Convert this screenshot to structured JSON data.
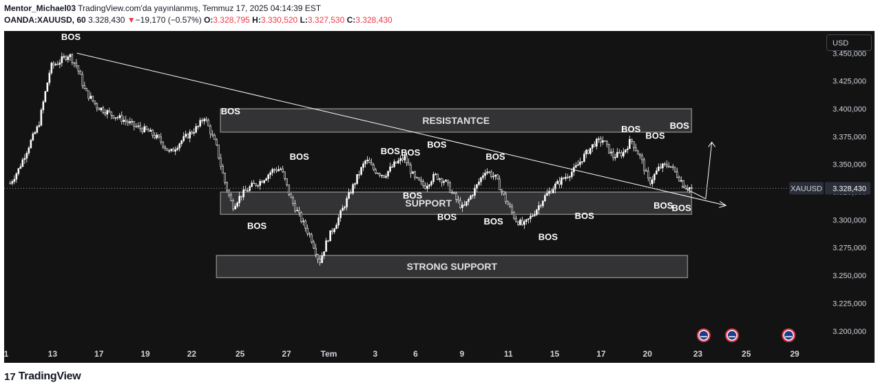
{
  "header": {
    "author": "Mentor_Michael03",
    "published_text": " TradingView.com'da yayınlanmış, Temmuz 17, 2025 04:14:39 EST",
    "symbol": "OANDA:XAUUSD, 60",
    "last_price": "3.328,430",
    "change_arrow": "▼",
    "change": "−19,170 (−0.57%)",
    "open_label": "O:",
    "open": "3.328,795",
    "high_label": "H:",
    "high": "3.330,520",
    "low_label": "L:",
    "low": "3.327,530",
    "close_label": "C:",
    "close": "3.328,430"
  },
  "currency_button": "USD",
  "footer": {
    "logo_text": "TradingView",
    "logo_mark": "17"
  },
  "colors": {
    "background": "#131313",
    "candle": "#ffffff",
    "zone_fill": "#3a3a3d",
    "zone_border": "#808080",
    "axis_text": "#d1d4dc",
    "negative": "#f23645",
    "event_badge": "#e0384c"
  },
  "chart_data": {
    "type": "candlestick",
    "price_axis": {
      "ylim": [
        3185,
        3470
      ],
      "ticks": [
        3450,
        3425,
        3400,
        3375,
        3350,
        3325,
        3300,
        3275,
        3250,
        3225,
        3200
      ],
      "tick_labels": [
        "3.450,000",
        "3.425,000",
        "3.400,000",
        "3.375,000",
        "3.350,000",
        "3.325,000",
        "3.300,000",
        "3.275,000",
        "3.250,000",
        "3.225,000",
        "3.200,000"
      ],
      "current_symbol": "XAUUSD",
      "current_price": 3328.43,
      "current_price_label": "3.328,430"
    },
    "time_axis": {
      "tick_labels": [
        "1",
        "13",
        "17",
        "19",
        "22",
        "25",
        "27",
        "Tem",
        "3",
        "6",
        "9",
        "11",
        "15",
        "17",
        "20",
        "23",
        "25",
        "29"
      ]
    },
    "price_path": [
      [
        0.2,
        3333
      ],
      [
        0.6,
        3345
      ],
      [
        1.2,
        3370
      ],
      [
        1.6,
        3385
      ],
      [
        2.2,
        3438
      ],
      [
        2.6,
        3442
      ],
      [
        3.1,
        3449
      ],
      [
        3.5,
        3438
      ],
      [
        3.9,
        3416
      ],
      [
        4.5,
        3402
      ],
      [
        5.2,
        3395
      ],
      [
        5.8,
        3390
      ],
      [
        6.4,
        3384
      ],
      [
        7.0,
        3380
      ],
      [
        7.6,
        3372
      ],
      [
        8.1,
        3360
      ],
      [
        8.6,
        3370
      ],
      [
        9.1,
        3378
      ],
      [
        9.5,
        3384
      ],
      [
        9.8,
        3393
      ],
      [
        10.4,
        3366
      ],
      [
        10.8,
        3335
      ],
      [
        11.2,
        3312
      ],
      [
        11.6,
        3322
      ],
      [
        12.1,
        3330
      ],
      [
        12.6,
        3335
      ],
      [
        13.2,
        3345
      ],
      [
        13.6,
        3346
      ],
      [
        14.1,
        3318
      ],
      [
        14.6,
        3300
      ],
      [
        15.1,
        3283
      ],
      [
        15.5,
        3262
      ],
      [
        15.9,
        3283
      ],
      [
        16.4,
        3300
      ],
      [
        16.9,
        3320
      ],
      [
        17.4,
        3340
      ],
      [
        17.8,
        3354
      ],
      [
        18.2,
        3345
      ],
      [
        18.7,
        3340
      ],
      [
        19.2,
        3350
      ],
      [
        19.7,
        3356
      ],
      [
        20.2,
        3337
      ],
      [
        20.7,
        3330
      ],
      [
        21.2,
        3340
      ],
      [
        21.7,
        3335
      ],
      [
        22.2,
        3320
      ],
      [
        22.6,
        3310
      ],
      [
        23.2,
        3328
      ],
      [
        23.7,
        3345
      ],
      [
        24.2,
        3338
      ],
      [
        24.7,
        3318
      ],
      [
        25.2,
        3300
      ],
      [
        25.6,
        3295
      ],
      [
        26.1,
        3306
      ],
      [
        26.6,
        3320
      ],
      [
        27.1,
        3330
      ],
      [
        27.6,
        3338
      ],
      [
        28.1,
        3345
      ],
      [
        28.6,
        3358
      ],
      [
        29.1,
        3369
      ],
      [
        29.5,
        3372
      ],
      [
        30.0,
        3357
      ],
      [
        30.5,
        3360
      ],
      [
        30.9,
        3372
      ],
      [
        31.4,
        3355
      ],
      [
        31.8,
        3333
      ],
      [
        32.3,
        3347
      ],
      [
        32.8,
        3350
      ],
      [
        33.2,
        3340
      ],
      [
        33.6,
        3330
      ],
      [
        33.9,
        3328.43
      ]
    ],
    "zones": [
      {
        "label": "RESISTANTCE",
        "from": 3379,
        "to": 3400,
        "x_start": 10.6,
        "x_end": 33.9
      },
      {
        "label": "SUPPORT",
        "from": 3305,
        "to": 3325,
        "x_start": 10.6,
        "x_end": 33.9
      },
      {
        "label": "STRONG SUPPORT",
        "from": 3248,
        "to": 3268,
        "x_start": 10.4,
        "x_end": 33.7
      }
    ],
    "trendline": [
      [
        3.5,
        3450
      ],
      [
        35.6,
        3313
      ]
    ],
    "projection": [
      [
        33.4,
        3330
      ],
      [
        34.6,
        3319
      ],
      [
        34.9,
        3370
      ]
    ],
    "annotations": [
      {
        "text": "BOS",
        "x": 3.2,
        "y": 3462
      },
      {
        "text": "BOS",
        "x": 11.1,
        "y": 3395
      },
      {
        "text": "BOS",
        "x": 12.4,
        "y": 3292
      },
      {
        "text": "BOS",
        "x": 14.5,
        "y": 3354
      },
      {
        "text": "BOS",
        "x": 19.0,
        "y": 3359
      },
      {
        "text": "BOS",
        "x": 20.0,
        "y": 3358
      },
      {
        "text": "BOS",
        "x": 21.3,
        "y": 3365
      },
      {
        "text": "BOS",
        "x": 20.1,
        "y": 3319
      },
      {
        "text": "BOS",
        "x": 21.8,
        "y": 3300
      },
      {
        "text": "BOS",
        "x": 24.2,
        "y": 3354
      },
      {
        "text": "BOS",
        "x": 24.1,
        "y": 3296
      },
      {
        "text": "BOS",
        "x": 26.8,
        "y": 3282
      },
      {
        "text": "BOS",
        "x": 28.6,
        "y": 3301
      },
      {
        "text": "BOS",
        "x": 30.9,
        "y": 3379
      },
      {
        "text": "BOS",
        "x": 32.1,
        "y": 3373
      },
      {
        "text": "BOS",
        "x": 32.5,
        "y": 3310
      },
      {
        "text": "BOS",
        "x": 33.3,
        "y": 3382
      },
      {
        "text": "BOS",
        "x": 33.4,
        "y": 3308
      }
    ],
    "event_markers": [
      34.5,
      35.9,
      38.7
    ]
  }
}
